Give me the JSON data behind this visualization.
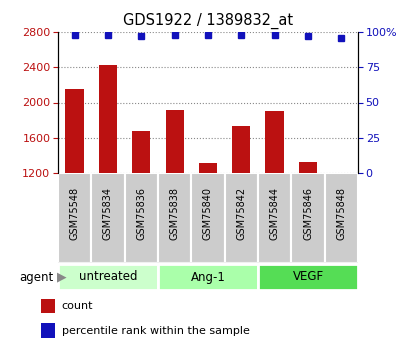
{
  "title": "GDS1922 / 1389832_at",
  "samples": [
    "GSM75548",
    "GSM75834",
    "GSM75836",
    "GSM75838",
    "GSM75840",
    "GSM75842",
    "GSM75844",
    "GSM75846",
    "GSM75848"
  ],
  "counts": [
    2150,
    2420,
    1680,
    1910,
    1310,
    1730,
    1900,
    1330,
    1200
  ],
  "percentiles": [
    98,
    98,
    97,
    98,
    98,
    98,
    98,
    97,
    96
  ],
  "groups": [
    {
      "label": "untreated",
      "indices": [
        0,
        1,
        2
      ],
      "color": "#ccffcc"
    },
    {
      "label": "Ang-1",
      "indices": [
        3,
        4,
        5
      ],
      "color": "#aaffaa"
    },
    {
      "label": "VEGF",
      "indices": [
        6,
        7,
        8
      ],
      "color": "#55dd55"
    }
  ],
  "ylim_left": [
    1200,
    2800
  ],
  "ylim_right": [
    0,
    100
  ],
  "yticks_left": [
    1200,
    1600,
    2000,
    2400,
    2800
  ],
  "yticks_right": [
    0,
    25,
    50,
    75,
    100
  ],
  "bar_color": "#bb1111",
  "dot_color": "#1111bb",
  "bar_width": 0.55,
  "grid_color": "#888888",
  "sample_bg_color": "#cccccc",
  "agent_label": "agent",
  "legend_count_label": "count",
  "legend_pct_label": "percentile rank within the sample"
}
